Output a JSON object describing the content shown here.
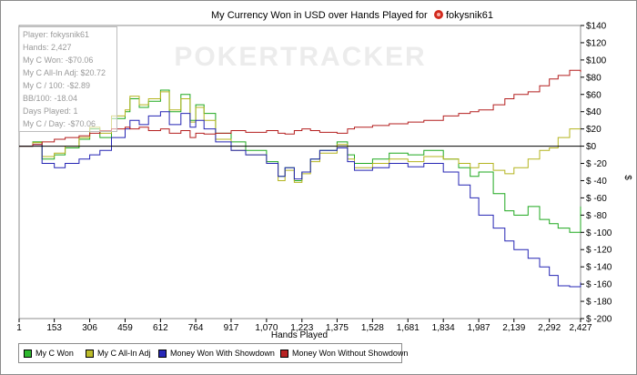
{
  "chart_data": {
    "type": "line",
    "title": "My Currency Won in USD over Hands Played for",
    "title_player": "fokysnik61",
    "xlabel": "Hands Played",
    "ylabel": "$",
    "x_ticks": [
      "1",
      "153",
      "306",
      "459",
      "612",
      "764",
      "917",
      "1,070",
      "1,223",
      "1,375",
      "1,528",
      "1,681",
      "1,834",
      "1,987",
      "2,139",
      "2,292",
      "2,427"
    ],
    "y_ticks": [
      "$140",
      "$120",
      "$100",
      "$80",
      "$60",
      "$40",
      "$20",
      "$0",
      "$ -20",
      "$ -40",
      "$ -60",
      "$ -80",
      "$ -100",
      "$ -120",
      "$ -140",
      "$ -160",
      "$ -180",
      "$ -200"
    ],
    "xlim": [
      1,
      2427
    ],
    "ylim": [
      -200,
      140
    ],
    "grid": false,
    "watermark": "POKERTRACKER",
    "series": [
      {
        "name": "My C Won",
        "color": "#1fa81f",
        "x": [
          1,
          60,
          100,
          153,
          200,
          260,
          306,
          350,
          400,
          459,
          480,
          520,
          560,
          612,
          650,
          700,
          740,
          764,
          800,
          850,
          917,
          980,
          1070,
          1120,
          1150,
          1190,
          1223,
          1260,
          1300,
          1375,
          1420,
          1450,
          1528,
          1600,
          1681,
          1750,
          1834,
          1900,
          1950,
          1987,
          2050,
          2100,
          2139,
          2200,
          2250,
          2292,
          2330,
          2380,
          2427
        ],
        "y": [
          0,
          5,
          -15,
          -10,
          -2,
          8,
          20,
          10,
          32,
          40,
          55,
          45,
          52,
          65,
          40,
          60,
          30,
          48,
          38,
          15,
          5,
          -5,
          -18,
          -35,
          -25,
          -40,
          -30,
          -15,
          -5,
          5,
          -10,
          -20,
          -15,
          -8,
          -10,
          -5,
          -15,
          -25,
          -35,
          -30,
          -55,
          -75,
          -80,
          -70,
          -85,
          -90,
          -95,
          -100,
          -70
        ]
      },
      {
        "name": "My C All-In Adj",
        "color": "#b4b41e",
        "x": [
          1,
          60,
          100,
          153,
          200,
          260,
          306,
          350,
          400,
          459,
          480,
          520,
          560,
          612,
          650,
          700,
          740,
          764,
          800,
          850,
          917,
          980,
          1070,
          1120,
          1150,
          1190,
          1223,
          1260,
          1300,
          1375,
          1420,
          1450,
          1528,
          1600,
          1681,
          1750,
          1834,
          1900,
          1950,
          1987,
          2050,
          2100,
          2139,
          2200,
          2250,
          2292,
          2330,
          2380,
          2427
        ],
        "y": [
          0,
          4,
          -12,
          -8,
          0,
          10,
          22,
          15,
          35,
          42,
          58,
          48,
          55,
          63,
          42,
          55,
          28,
          45,
          30,
          8,
          -5,
          -10,
          -20,
          -40,
          -28,
          -42,
          -32,
          -18,
          -8,
          2,
          -15,
          -25,
          -20,
          -15,
          -18,
          -12,
          -15,
          -20,
          -25,
          -20,
          -28,
          -32,
          -25,
          -15,
          -5,
          -2,
          10,
          20,
          20
        ]
      },
      {
        "name": "Money Won With Showdown",
        "color": "#2424b4",
        "x": [
          1,
          60,
          100,
          153,
          200,
          260,
          306,
          350,
          400,
          459,
          480,
          520,
          560,
          612,
          650,
          700,
          740,
          764,
          800,
          850,
          917,
          980,
          1070,
          1120,
          1150,
          1190,
          1223,
          1260,
          1300,
          1375,
          1420,
          1450,
          1528,
          1600,
          1681,
          1750,
          1834,
          1900,
          1950,
          1987,
          2050,
          2100,
          2139,
          2200,
          2250,
          2292,
          2330,
          2380,
          2427
        ],
        "y": [
          0,
          2,
          -20,
          -25,
          -20,
          -15,
          -10,
          -5,
          10,
          20,
          30,
          25,
          35,
          40,
          25,
          38,
          22,
          30,
          20,
          5,
          -5,
          -10,
          -20,
          -35,
          -25,
          -38,
          -30,
          -15,
          -5,
          -2,
          -18,
          -28,
          -25,
          -20,
          -24,
          -20,
          -30,
          -45,
          -60,
          -80,
          -95,
          -110,
          -120,
          -130,
          -140,
          -150,
          -162,
          -163,
          -158
        ]
      },
      {
        "name": "Money Won Without Showdown",
        "color": "#b41e1e",
        "x": [
          1,
          60,
          100,
          153,
          200,
          260,
          306,
          350,
          400,
          459,
          480,
          520,
          560,
          612,
          650,
          700,
          740,
          764,
          800,
          850,
          917,
          980,
          1070,
          1120,
          1150,
          1190,
          1223,
          1260,
          1300,
          1375,
          1420,
          1450,
          1528,
          1600,
          1681,
          1750,
          1834,
          1900,
          1950,
          1987,
          2050,
          2100,
          2139,
          2200,
          2250,
          2292,
          2330,
          2380,
          2427
        ],
        "y": [
          0,
          2,
          5,
          8,
          10,
          12,
          15,
          18,
          20,
          22,
          20,
          22,
          18,
          20,
          15,
          18,
          10,
          15,
          14,
          15,
          18,
          16,
          18,
          15,
          14,
          18,
          20,
          18,
          16,
          15,
          20,
          22,
          24,
          26,
          28,
          30,
          35,
          38,
          40,
          42,
          48,
          55,
          60,
          63,
          70,
          78,
          82,
          88,
          86
        ]
      }
    ]
  },
  "stats_box": [
    "Player: fokysnik61",
    "Hands: 2,427",
    "My C Won: -$70.06",
    "My C All-In Adj: $20.72",
    "My C / 100: -$2.89",
    "BB/100: -18.04",
    "Days Played: 1",
    "My C / Day: -$70.06"
  ],
  "legend": [
    {
      "label": "My C Won",
      "color": "#2db82d"
    },
    {
      "label": "My C All-In Adj",
      "color": "#bcbc2a"
    },
    {
      "label": "Money Won With Showdown",
      "color": "#2828b8"
    },
    {
      "label": "Money Won Without Showdown",
      "color": "#b82424"
    }
  ]
}
